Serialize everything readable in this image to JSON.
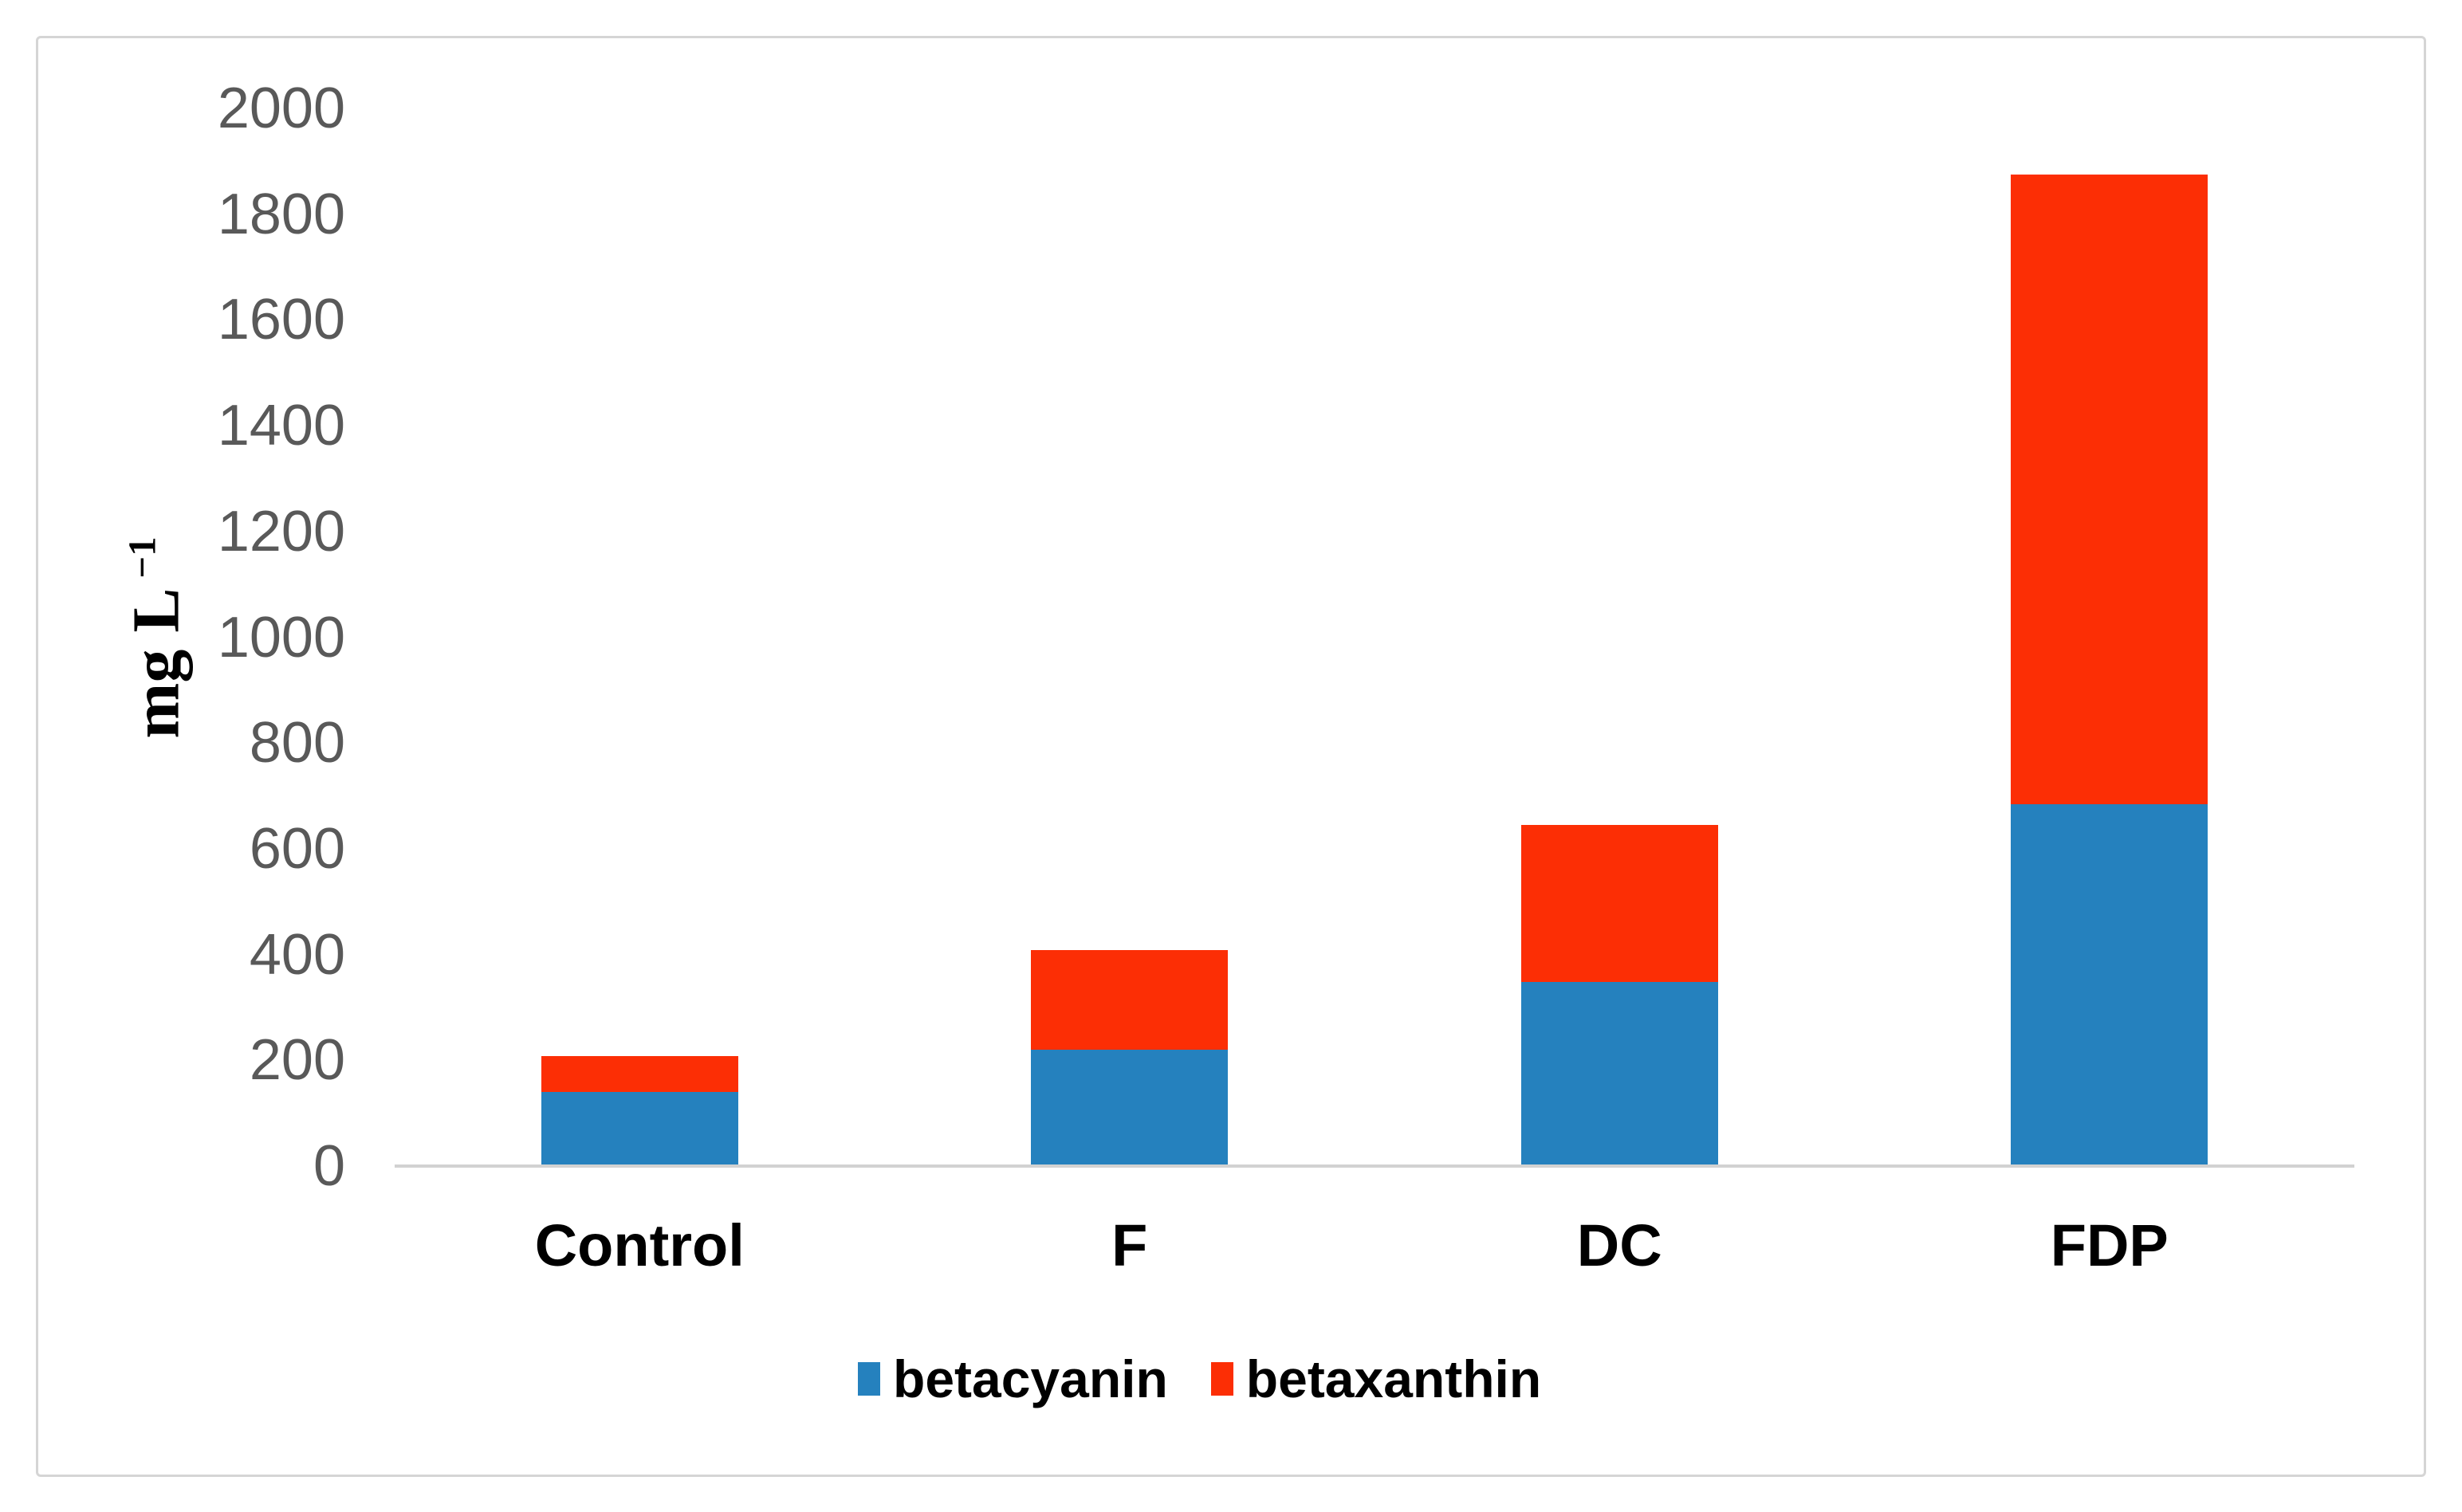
{
  "chart_data": {
    "type": "bar",
    "stacked": true,
    "title": "",
    "categories": [
      "Control",
      "F",
      "DC",
      "FDP"
    ],
    "series": [
      {
        "name": "betacyanin",
        "color": "#2581BE",
        "values": [
          140,
          220,
          348,
          685
        ]
      },
      {
        "name": "betaxanthin",
        "color": "#FC2E05",
        "values": [
          68,
          188,
          297,
          1190
        ]
      }
    ],
    "ylabel": {
      "text": "mg L",
      "sup": "−1"
    },
    "xlabel": "",
    "ylim": [
      0,
      2000
    ],
    "yticks": [
      0,
      200,
      400,
      600,
      800,
      1000,
      1200,
      1400,
      1600,
      1800,
      2000
    ],
    "grid": false,
    "legend_position": "bottom",
    "axis_line_color": "#d2d2d2",
    "frame_color": "#d5d5d5",
    "tick_label_color": "#595959",
    "text_color": "#000000"
  }
}
